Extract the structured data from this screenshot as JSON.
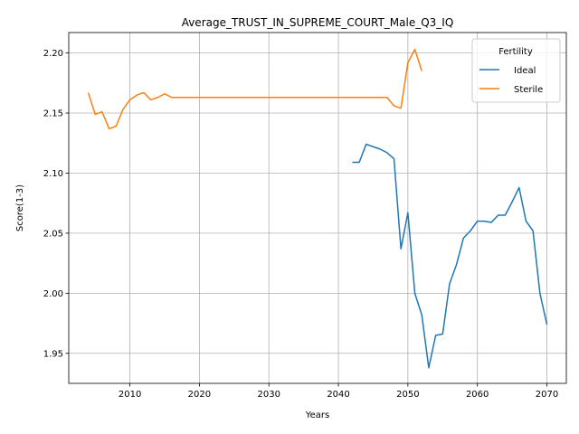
{
  "chart_data": {
    "type": "line",
    "title": "Average_TRUST_IN_SUPREME_COURT_Male_Q3_IQ",
    "xlabel": "Years",
    "ylabel": "Score(1-3)",
    "xlim": [
      2001.2,
      2072.8
    ],
    "ylim": [
      1.925,
      2.217
    ],
    "xticks": [
      2010,
      2020,
      2030,
      2040,
      2050,
      2060,
      2070
    ],
    "xtick_labels": [
      "2010",
      "2020",
      "2030",
      "2040",
      "2050",
      "2060",
      "2070"
    ],
    "yticks": [
      1.95,
      2.0,
      2.05,
      2.1,
      2.15,
      2.2
    ],
    "ytick_labels": [
      "1.95",
      "2.00",
      "2.05",
      "2.10",
      "2.15",
      "2.20"
    ],
    "grid": true,
    "legend": {
      "title": "Fertility",
      "placement": "top-right"
    },
    "series": [
      {
        "name": "Ideal",
        "color": "#1f77b4",
        "x": [
          2042,
          2043,
          2044,
          2045,
          2046,
          2047,
          2048,
          2049,
          2050,
          2051,
          2052,
          2053,
          2054,
          2055,
          2056,
          2057,
          2058,
          2059,
          2060,
          2061,
          2062,
          2063,
          2064,
          2065,
          2066,
          2067,
          2068,
          2069,
          2070
        ],
        "y": [
          2.109,
          2.109,
          2.124,
          2.122,
          2.12,
          2.117,
          2.112,
          2.037,
          2.067,
          2.0,
          1.982,
          1.938,
          1.965,
          1.966,
          2.008,
          2.024,
          2.046,
          2.052,
          2.06,
          2.06,
          2.059,
          2.065,
          2.065,
          2.076,
          2.088,
          2.06,
          2.052,
          2.0,
          1.974
        ]
      },
      {
        "name": "Sterile",
        "color": "#ff7f0e",
        "x": [
          2004,
          2005,
          2006,
          2007,
          2008,
          2009,
          2010,
          2011,
          2012,
          2013,
          2014,
          2015,
          2016,
          2017,
          2018,
          2019,
          2020,
          2025,
          2030,
          2035,
          2040,
          2045,
          2047,
          2048,
          2049,
          2050,
          2051,
          2052
        ],
        "y": [
          2.167,
          2.149,
          2.151,
          2.137,
          2.139,
          2.153,
          2.161,
          2.165,
          2.167,
          2.161,
          2.163,
          2.166,
          2.163,
          2.163,
          2.163,
          2.163,
          2.163,
          2.163,
          2.163,
          2.163,
          2.163,
          2.163,
          2.163,
          2.156,
          2.154,
          2.192,
          2.203,
          2.185
        ]
      }
    ]
  }
}
